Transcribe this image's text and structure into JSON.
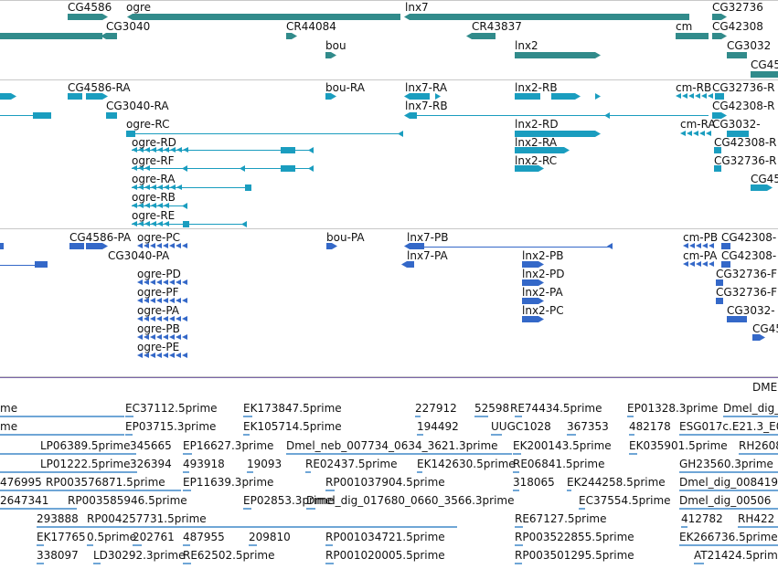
{
  "colors": {
    "gene": "#318b8b",
    "transcript": "#1a9dbf",
    "protein": "#3468c8",
    "est": "#6fa6d6",
    "separator": "#c8c8c8",
    "scaffold": "#7b64a8"
  },
  "gene_labels": [
    "CG4586",
    "ogre",
    "lnx7",
    "CG32736",
    "CG3040",
    "CR44084",
    "CR43837",
    "cm",
    "CG42308",
    "bou",
    "lnx2",
    "CG3032",
    "CG45"
  ],
  "transcript_labels": [
    "CG4586-RA",
    "bou-RA",
    "lnx7-RA",
    "lnx2-RB",
    "cm-RB",
    "CG32736-R",
    "CG3040-RA",
    "lnx7-RB",
    "CG42308-R",
    "ogre-RC",
    "lnx2-RD",
    "cm-RA",
    "CG3032-",
    "ogre-RD",
    "lnx2-RA",
    "CG42308-R",
    "ogre-RF",
    "lnx2-RC",
    "CG32736-R",
    "ogre-RA",
    "CG45",
    "ogre-RB",
    "ogre-RE"
  ],
  "protein_labels": [
    "CG4586-PA",
    "ogre-PC",
    "bou-PA",
    "lnx7-PB",
    "cm-PB",
    "CG42308-",
    "CG3040-PA",
    "lnx7-PA",
    "lnx2-PB",
    "cm-PA",
    "CG42308-",
    "ogre-PD",
    "lnx2-PD",
    "CG32736-F",
    "ogre-PF",
    "lnx2-PA",
    "CG32736-F",
    "ogre-PA",
    "lnx2-PC",
    "CG3032-",
    "ogre-PB",
    "CG45",
    "ogre-PE"
  ],
  "scaffold_label": "DME",
  "est_labels": [
    "me",
    "EC37112.5prime",
    "EK173847.5prime",
    "227912",
    "52598",
    "RE74434.5prime",
    "EP01328.3prime",
    "Dmel_dig_",
    "me",
    "EP03715.3prime",
    "EK105714.5prime",
    "194492",
    "UUGC1028",
    "367353",
    "482178",
    "ESG017c.E21.3_E0",
    "LP06389.5prime",
    "345665",
    "EP16627.3prime",
    "Dmel_neb_007734_0634_3621.3prime",
    "EK200143.5prime",
    "EK035901.5prime",
    "RH2608",
    "LP01222.5prime",
    "326394",
    "493918",
    "19093",
    "RE02437.5prime",
    "EK142630.5prime",
    "RE06841.5prime",
    "GH23560.3prime",
    "476995",
    "RP003576871.5prime",
    "EP11639.3prime",
    "RP001037904.5prime",
    "318065",
    "EK244258.5prime",
    "Dmel_dig_008419",
    "2647341",
    "RP003585946.5prime",
    "EP02853.3prime",
    "Dmel_dig_017680_0660_3566.3prime",
    "EC37554.5prime",
    "Dmel_dig_00506",
    "293888",
    "RP004257731.5prime",
    "RE67127.5prime",
    "412782",
    "RH422",
    "EK17765",
    "0.5prime",
    "202761",
    "487955",
    "209810",
    "RP001034721.5prime",
    "RP003522855.5prime",
    "EK266736.5prime",
    "338097",
    "LD30292.3prime",
    "RE62502.5prime",
    "RP001020005.5prime",
    "RP003501295.5prime",
    "AT21424.5prime"
  ]
}
